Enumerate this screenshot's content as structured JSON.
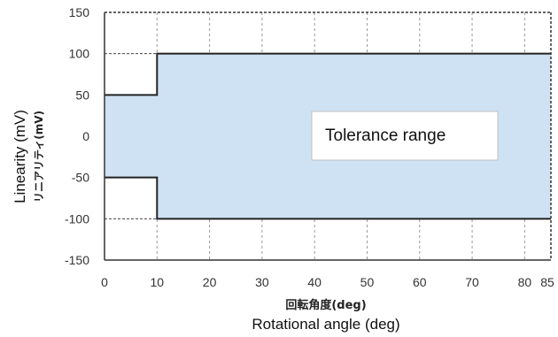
{
  "chart_data": {
    "type": "area",
    "x_ticks": [
      0,
      10,
      20,
      30,
      40,
      50,
      60,
      70,
      80,
      85
    ],
    "y_ticks": [
      150,
      100,
      50,
      0,
      -50,
      -100,
      -150
    ],
    "xlim": [
      0,
      85
    ],
    "ylim": [
      -150,
      150
    ],
    "grid": true,
    "xlabel": "Rotational angle (deg)",
    "xlabel_jp": "回転角度(deg)",
    "ylabel": "Linearity (mV)",
    "ylabel_jp": "リニアリティ(mV)",
    "annotation": "Tolerance range",
    "fill_color": "#cfe2f3",
    "series": [
      {
        "x": [
          0,
          10,
          10,
          85
        ],
        "values": [
          50,
          50,
          100,
          100
        ]
      },
      {
        "x": [
          0,
          10,
          10,
          85
        ],
        "values": [
          -50,
          -50,
          -100,
          -100
        ]
      }
    ]
  }
}
